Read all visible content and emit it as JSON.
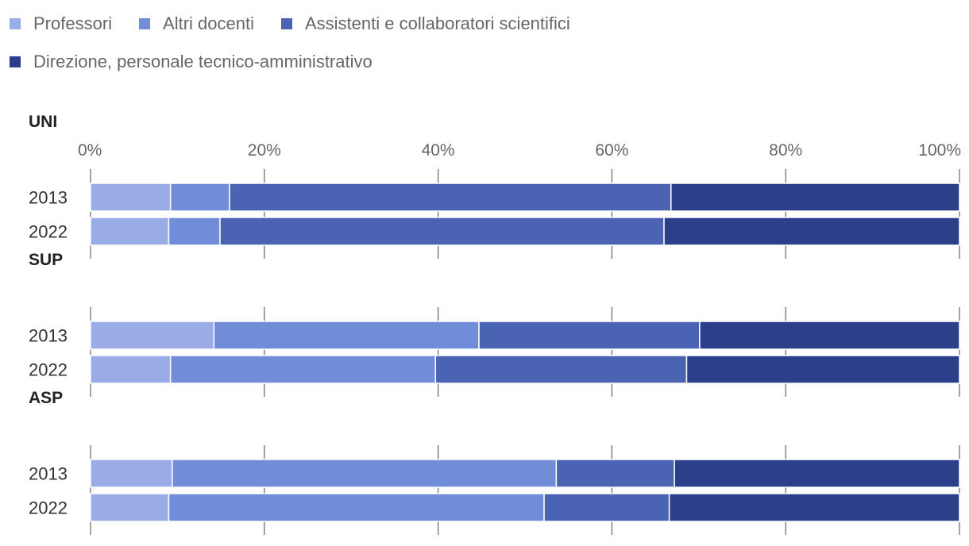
{
  "legend": [
    {
      "label": "Professori",
      "color": "#9aace6"
    },
    {
      "label": "Altri docenti",
      "color": "#728dd8"
    },
    {
      "label": "Assistenti e collaboratori scientifici",
      "color": "#4a63b2"
    },
    {
      "label": "Direzione, personale tecnico-amministrativo",
      "color": "#2b3f8a"
    }
  ],
  "chart_data": {
    "type": "bar",
    "orientation": "horizontal",
    "stacked": true,
    "normalized": true,
    "x_ticks": [
      "0%",
      "20%",
      "40%",
      "60%",
      "80%",
      "100%"
    ],
    "xlim": [
      0,
      100
    ],
    "series_names": [
      "Professori",
      "Altri docenti",
      "Assistenti e collaboratori scientifici",
      "Direzione, personale tecnico-amministrativo"
    ],
    "groups": [
      {
        "name": "UNI",
        "rows": [
          {
            "label": "2013",
            "values": [
              9.2,
              6.8,
              50.8,
              33.2
            ]
          },
          {
            "label": "2022",
            "values": [
              9.0,
              5.9,
              51.1,
              34.0
            ]
          }
        ]
      },
      {
        "name": "SUP",
        "rows": [
          {
            "label": "2013",
            "values": [
              14.2,
              30.5,
              25.4,
              29.9
            ]
          },
          {
            "label": "2022",
            "values": [
              9.2,
              30.5,
              28.9,
              31.4
            ]
          }
        ]
      },
      {
        "name": "ASP",
        "rows": [
          {
            "label": "2013",
            "values": [
              9.4,
              44.2,
              13.6,
              32.8
            ]
          },
          {
            "label": "2022",
            "values": [
              9.0,
              43.2,
              14.4,
              33.4
            ]
          }
        ]
      }
    ]
  }
}
